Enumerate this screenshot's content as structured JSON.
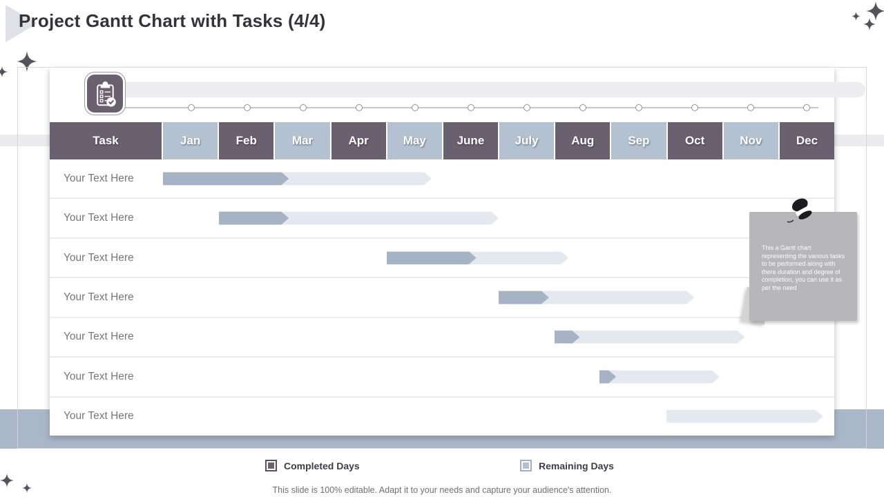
{
  "slide": {
    "title": "Project Gantt Chart with Tasks (4/4)",
    "footer": "This slide is 100% editable. Adapt it to your needs and capture your audience's attention."
  },
  "chart_data": {
    "type": "gantt",
    "unit": "months",
    "month_span": 12,
    "columns": [
      "Task",
      "Jan",
      "Feb",
      "Mar",
      "Apr",
      "May",
      "June",
      "July",
      "Aug",
      "Sep",
      "Oct",
      "Nov",
      "Dec"
    ],
    "tasks": [
      {
        "label": "Your Text Here",
        "start": 0,
        "completed": 2.25,
        "total": 4.8
      },
      {
        "label": "Your Text Here",
        "start": 1,
        "completed": 1.25,
        "total": 5.0
      },
      {
        "label": "Your Text Here",
        "start": 4,
        "completed": 1.6,
        "total": 3.25
      },
      {
        "label": "Your Text Here",
        "start": 6,
        "completed": 0.9,
        "total": 3.5
      },
      {
        "label": "Your Text Here",
        "start": 7,
        "completed": 0.45,
        "total": 3.4
      },
      {
        "label": "Your Text Here",
        "start": 7.8,
        "completed": 0.3,
        "total": 2.15
      },
      {
        "label": "Your Text Here",
        "start": 9,
        "completed": 0,
        "total": 2.8
      }
    ],
    "legend": [
      {
        "label": "Completed Days",
        "color": "#6a6171"
      },
      {
        "label": "Remaining Days",
        "color": "#b3c0d0"
      }
    ]
  },
  "note": {
    "text": "This a Gantt chart representing the various tasks to be performed along with there duration and degree of completion, you can use it as per the need"
  },
  "icons": {
    "clipboard": "clipboard-check-icon",
    "pin": "push-pin-icon",
    "sparkle": "sparkle-icon",
    "milestone": "milestone-dot"
  },
  "colors": {
    "header_dark": "#696070",
    "header_light": "#b4c1d1",
    "bar_completed": "#a5b3c5",
    "bar_remaining": "#e4e9ef",
    "bottom_band": "#a9b7c8",
    "note_bg": "#b7b7b9"
  }
}
